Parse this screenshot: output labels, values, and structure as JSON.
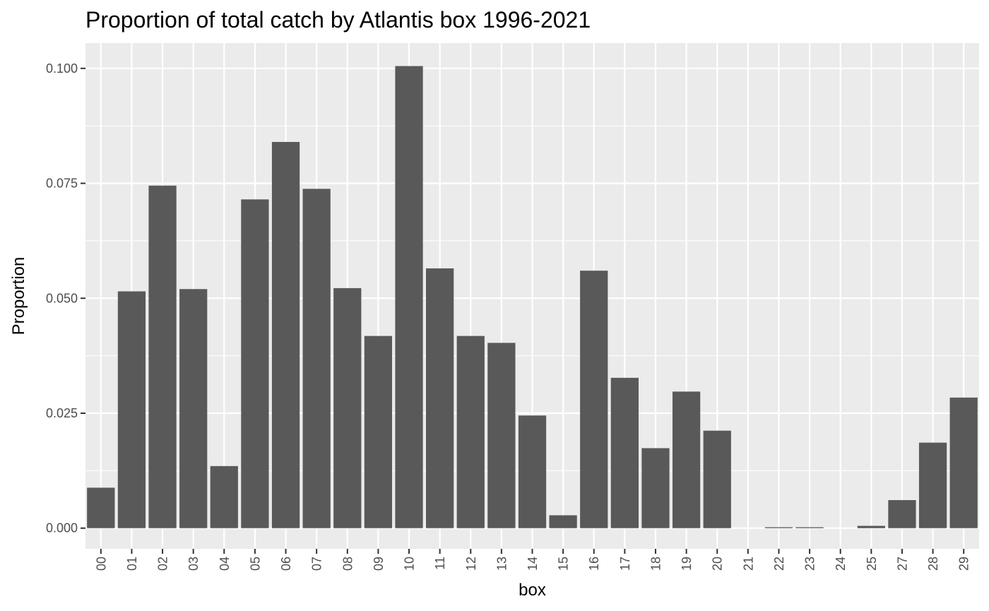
{
  "chart_data": {
    "type": "bar",
    "title": "Proportion of total catch by Atlantis box 1996-2021",
    "xlabel": "box",
    "ylabel": "Proportion",
    "categories": [
      "00",
      "01",
      "02",
      "03",
      "04",
      "05",
      "06",
      "07",
      "08",
      "09",
      "10",
      "11",
      "12",
      "13",
      "14",
      "15",
      "16",
      "17",
      "18",
      "19",
      "20",
      "21",
      "22",
      "23",
      "24",
      "25",
      "27",
      "28",
      "29"
    ],
    "values": [
      0.0088,
      0.0515,
      0.0745,
      0.052,
      0.0135,
      0.0715,
      0.084,
      0.0738,
      0.0522,
      0.0418,
      0.1005,
      0.0565,
      0.0418,
      0.0403,
      0.0245,
      0.0028,
      0.056,
      0.0327,
      0.0174,
      0.0297,
      0.0212,
      0.0,
      0.0002,
      0.0002,
      0.0,
      0.0005,
      0.0061,
      0.0186,
      0.0284
    ],
    "ylim": [
      -0.0045,
      0.1055
    ],
    "yticks": [
      0,
      0.025,
      0.05,
      0.075,
      0.1
    ],
    "ytick_labels": [
      "0.000",
      "0.025",
      "0.050",
      "0.075",
      "0.100"
    ],
    "grid": true,
    "panel_color": "#ebebeb",
    "bar_color": "#595959",
    "grid_color": "#ffffff"
  }
}
